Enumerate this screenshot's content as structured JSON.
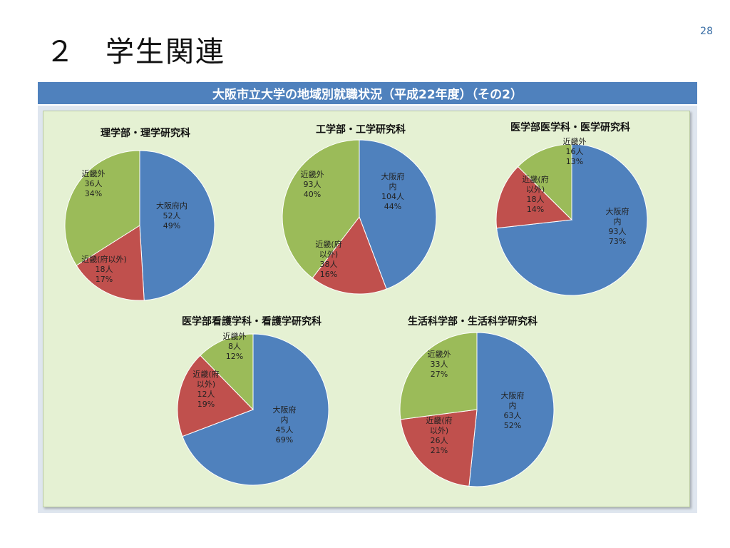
{
  "page_number": "28",
  "slide_title": "２　学生関連",
  "banner": "大阪市立大学の地域別就職状況（平成22年度）（その2）",
  "colors": {
    "blue": "#4f81bd",
    "red": "#c0504d",
    "green": "#9bbb59"
  },
  "chart_data": [
    {
      "type": "pie",
      "title": "理学部・理学研究科",
      "slices": [
        {
          "lines": [
            "大阪府内",
            "52人",
            "49%"
          ],
          "value": 52,
          "percent": 49,
          "color": "#4f81bd"
        },
        {
          "lines": [
            "近畿(府以外)",
            "18人",
            "17%"
          ],
          "value": 18,
          "percent": 17,
          "color": "#c0504d"
        },
        {
          "lines": [
            "近畿外",
            "36人",
            "34%"
          ],
          "value": 36,
          "percent": 34,
          "color": "#9bbb59"
        }
      ]
    },
    {
      "type": "pie",
      "title": "工学部・工学研究科",
      "slices": [
        {
          "lines": [
            "大阪府",
            "内",
            "104人",
            "44%"
          ],
          "value": 104,
          "percent": 44,
          "color": "#4f81bd"
        },
        {
          "lines": [
            "近畿(府",
            "以外)",
            "38人",
            "16%"
          ],
          "value": 38,
          "percent": 16,
          "color": "#c0504d"
        },
        {
          "lines": [
            "近畿外",
            "93人",
            "40%"
          ],
          "value": 93,
          "percent": 40,
          "color": "#9bbb59"
        }
      ]
    },
    {
      "type": "pie",
      "title": "医学部医学科・医学研究科",
      "slices": [
        {
          "lines": [
            "大阪府",
            "内",
            "93人",
            "73%"
          ],
          "value": 93,
          "percent": 73,
          "color": "#4f81bd"
        },
        {
          "lines": [
            "近畿(府",
            "以外)",
            "18人",
            "14%"
          ],
          "value": 18,
          "percent": 14,
          "color": "#c0504d"
        },
        {
          "lines": [
            "近畿外",
            "16人",
            "13%"
          ],
          "value": 16,
          "percent": 13,
          "color": "#9bbb59"
        }
      ]
    },
    {
      "type": "pie",
      "title": "医学部看護学科・看護学研究科",
      "slices": [
        {
          "lines": [
            "大阪府",
            "内",
            "45人",
            "69%"
          ],
          "value": 45,
          "percent": 69,
          "color": "#4f81bd"
        },
        {
          "lines": [
            "近畿(府",
            "以外)",
            "12人",
            "19%"
          ],
          "value": 12,
          "percent": 19,
          "color": "#c0504d"
        },
        {
          "lines": [
            "近畿外",
            "8人",
            "12%"
          ],
          "value": 8,
          "percent": 12,
          "color": "#9bbb59"
        }
      ]
    },
    {
      "type": "pie",
      "title": "生活科学部・生活科学研究科",
      "slices": [
        {
          "lines": [
            "大阪府",
            "内",
            "63人",
            "52%"
          ],
          "value": 63,
          "percent": 52,
          "color": "#4f81bd"
        },
        {
          "lines": [
            "近畿(府",
            "以外)",
            "26人",
            "21%"
          ],
          "value": 26,
          "percent": 21,
          "color": "#c0504d"
        },
        {
          "lines": [
            "近畿外",
            "33人",
            "27%"
          ],
          "value": 33,
          "percent": 27,
          "color": "#9bbb59"
        }
      ]
    }
  ]
}
